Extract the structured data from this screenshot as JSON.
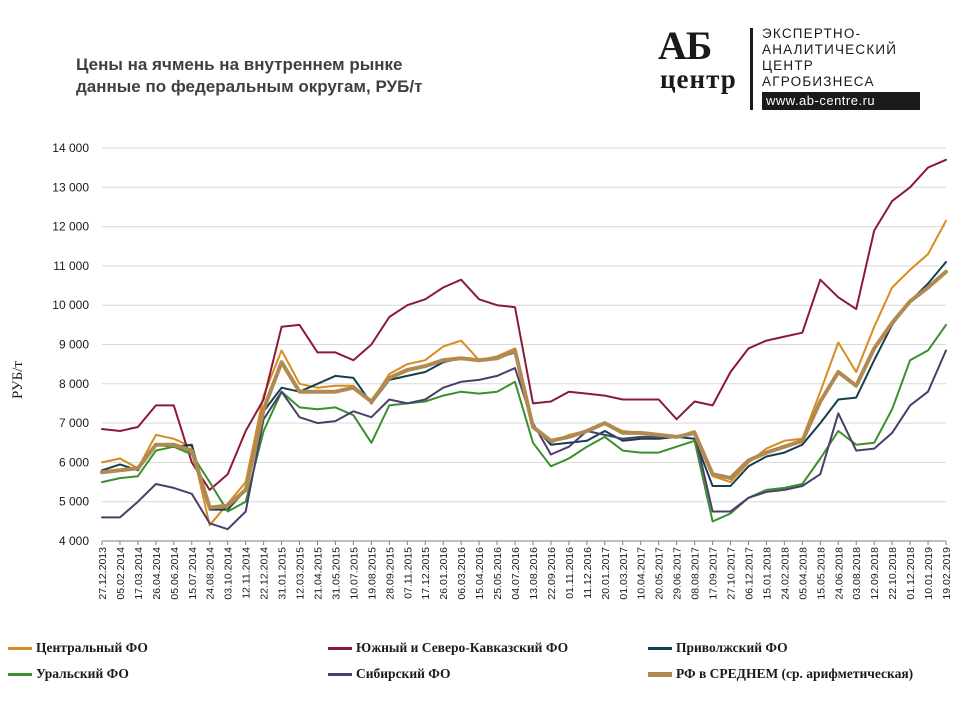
{
  "header": {
    "title_line1": "Цены на ячмень на внутреннем рынке",
    "title_line2": "данные по федеральным округам, РУБ/т"
  },
  "logo": {
    "ab": "АБ",
    "centr": "центр",
    "line1": "ЭКСПЕРТНО-",
    "line2": "АНАЛИТИЧЕСКИЙ",
    "line3": "ЦЕНТР",
    "line4": "АГРОБИЗНЕСА",
    "url": "www.ab-centre.ru"
  },
  "chart_data": {
    "type": "line",
    "title": "Цены на ячмень на внутреннем рынке данные по федеральным округам, РУБ/т",
    "ylabel": "РУБ/т",
    "xlabel": "",
    "ylim": [
      4000,
      14000
    ],
    "yticks": [
      4000,
      5000,
      6000,
      7000,
      8000,
      9000,
      10000,
      11000,
      12000,
      13000,
      14000
    ],
    "ytick_labels": [
      "4 000",
      "5 000",
      "6 000",
      "7 000",
      "8 000",
      "9 000",
      "10 000",
      "11 000",
      "12 000",
      "13 000",
      "14 000"
    ],
    "grid": "horizontal",
    "legend_position": "bottom",
    "xtick_labels": [
      "27.12.2013",
      "05.02.2014",
      "17.03.2014",
      "26.04.2014",
      "05.06.2014",
      "15.07.2014",
      "24.08.2014",
      "03.10.2014",
      "12.11.2014",
      "22.12.2014",
      "31.01.2015",
      "12.03.2015",
      "21.04.2015",
      "31.05.2015",
      "10.07.2015",
      "19.08.2015",
      "28.09.2015",
      "07.11.2015",
      "17.12.2015",
      "26.01.2016",
      "06.03.2016",
      "15.04.2016",
      "25.05.2016",
      "04.07.2016",
      "13.08.2016",
      "22.09.2016",
      "01.11.2016",
      "11.12.2016",
      "20.01.2017",
      "01.03.2017",
      "10.04.2017",
      "20.05.2017",
      "29.06.2017",
      "08.08.2017",
      "17.09.2017",
      "27.10.2017",
      "06.12.2017",
      "15.01.2018",
      "24.02.2018",
      "05.04.2018",
      "15.05.2018",
      "24.06.2018",
      "03.08.2018",
      "12.09.2018",
      "22.10.2018",
      "01.12.2018",
      "10.01.2019",
      "19.02.2019"
    ],
    "x_index_note": "points are sampled at the x-tick dates (index 0..47)",
    "series": [
      {
        "name": "Центральный ФО",
        "color": "#d98b1f",
        "width": 2,
        "values": [
          6000,
          6100,
          5850,
          6700,
          6600,
          6400,
          4400,
          4950,
          5500,
          7700,
          8850,
          8000,
          7900,
          7950,
          7950,
          7550,
          8250,
          8500,
          8600,
          8950,
          9100,
          8600,
          8700,
          8900,
          6900,
          6500,
          6700,
          6800,
          7000,
          6800,
          6750,
          6700,
          6650,
          6800,
          5650,
          5500,
          6000,
          6350,
          6550,
          6600,
          7800,
          9050,
          8300,
          9450,
          10450,
          10900,
          11300,
          12150
        ]
      },
      {
        "name": "Южный и Северо-Кавказский ФО",
        "color": "#8b1a3a",
        "width": 2,
        "values": [
          6850,
          6800,
          6900,
          7450,
          7450,
          6000,
          5300,
          5700,
          6800,
          7600,
          9450,
          9500,
          8800,
          8800,
          8600,
          9000,
          9700,
          10000,
          10150,
          10450,
          10650,
          10150,
          10000,
          9950,
          7500,
          7550,
          7800,
          7750,
          7700,
          7600,
          7600,
          7600,
          7100,
          7550,
          7450,
          8300,
          8900,
          9100,
          9200,
          9300,
          10650,
          10200,
          9900,
          11900,
          12650,
          13000,
          13500,
          13700
        ]
      },
      {
        "name": "Приволжский ФО",
        "color": "#153f4f",
        "width": 2,
        "values": [
          5800,
          5950,
          5800,
          6450,
          6400,
          6450,
          4800,
          4800,
          5300,
          7300,
          7900,
          7800,
          8000,
          8200,
          8150,
          7500,
          8100,
          8200,
          8300,
          8550,
          8650,
          8600,
          8650,
          8800,
          6950,
          6450,
          6500,
          6550,
          6800,
          6550,
          6600,
          6600,
          6650,
          6600,
          5400,
          5400,
          5900,
          6150,
          6250,
          6450,
          7000,
          7600,
          7650,
          8600,
          9500,
          10100,
          10550,
          11100
        ]
      },
      {
        "name": "Уральский ФО",
        "color": "#3a8f2e",
        "width": 2,
        "values": [
          5500,
          5600,
          5650,
          6300,
          6400,
          6200,
          5500,
          4750,
          5000,
          6800,
          7800,
          7400,
          7350,
          7400,
          7200,
          6500,
          7450,
          7500,
          7550,
          7700,
          7800,
          7750,
          7800,
          8050,
          6500,
          5900,
          6100,
          6400,
          6650,
          6300,
          6250,
          6250,
          6400,
          6550,
          4500,
          4700,
          5100,
          5300,
          5350,
          5450,
          6100,
          6800,
          6450,
          6500,
          7350,
          8600,
          8850,
          9500
        ]
      },
      {
        "name": "Сибирский ФО",
        "color": "#4a3f6b",
        "width": 2,
        "values": [
          4600,
          4600,
          5000,
          5450,
          5350,
          5200,
          4450,
          4300,
          4750,
          7100,
          7800,
          7150,
          7000,
          7050,
          7300,
          7150,
          7600,
          7500,
          7600,
          7900,
          8050,
          8100,
          8200,
          8400,
          7000,
          6200,
          6400,
          6800,
          6700,
          6600,
          6650,
          6650,
          6650,
          6750,
          4750,
          4750,
          5100,
          5250,
          5300,
          5400,
          5700,
          7250,
          6300,
          6350,
          6750,
          7450,
          7800,
          8850
        ]
      },
      {
        "name": "РФ в СРЕДНЕМ (ср. арифметическая)",
        "color": "#b08a50",
        "width": 4,
        "values": [
          5750,
          5800,
          5850,
          6450,
          6450,
          6300,
          4850,
          4900,
          5300,
          7350,
          8550,
          7800,
          7800,
          7800,
          7900,
          7550,
          8150,
          8350,
          8450,
          8600,
          8650,
          8600,
          8650,
          8850,
          6900,
          6550,
          6650,
          6800,
          7000,
          6750,
          6750,
          6700,
          6650,
          6750,
          5700,
          5600,
          6050,
          6250,
          6400,
          6550,
          7550,
          8300,
          7950,
          8900,
          9550,
          10100,
          10450,
          10850
        ]
      }
    ]
  }
}
